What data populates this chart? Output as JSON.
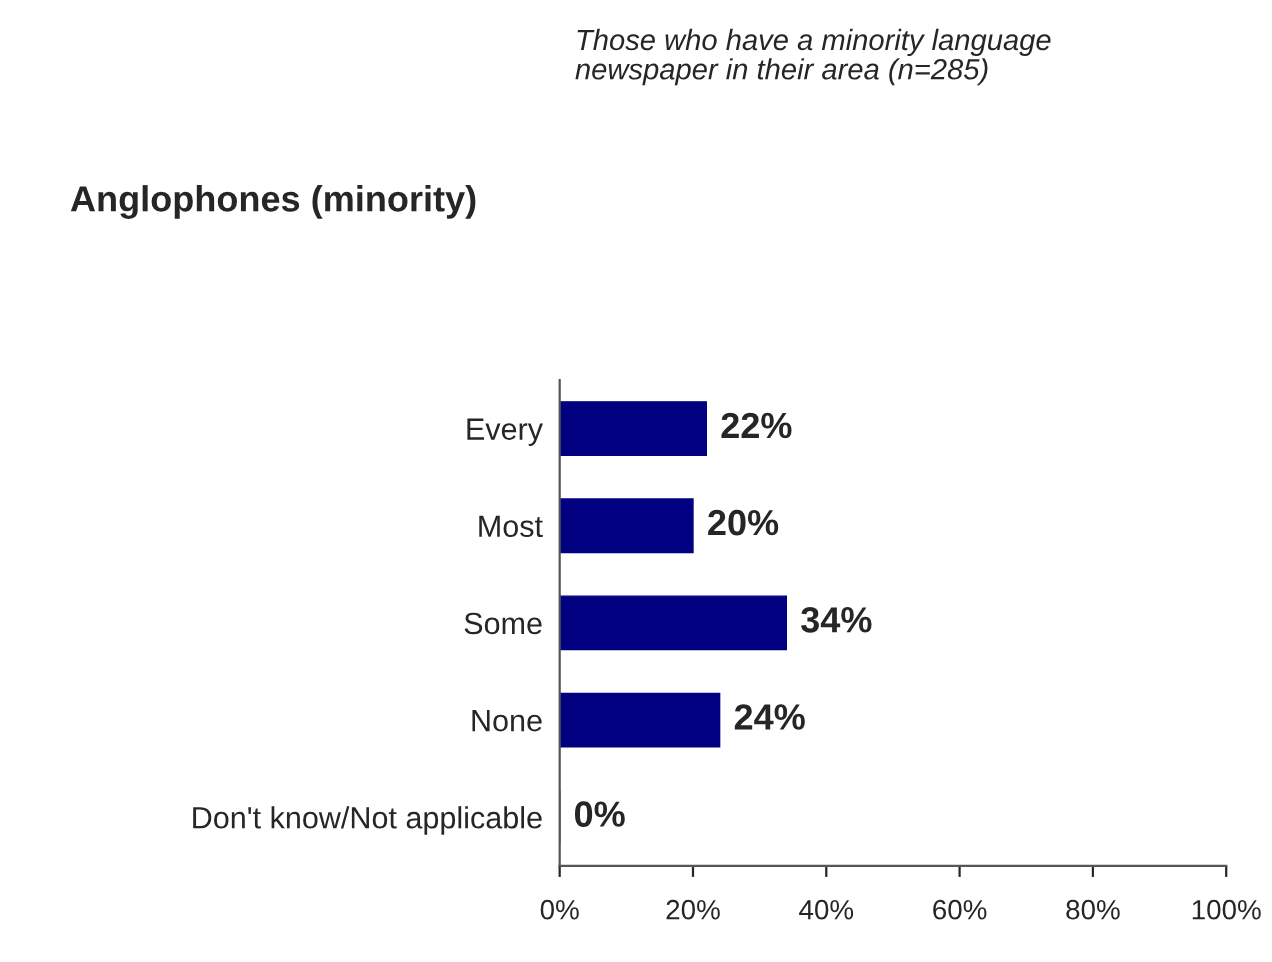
{
  "chart_data": {
    "type": "bar",
    "orientation": "horizontal",
    "title": "Anglophones (minority)",
    "subtitle": "Those who have a minority language\nnewspaper in their area (n=285)",
    "categories": [
      "Every",
      "Most",
      "Some",
      "None",
      "Don't know/Not applicable"
    ],
    "values": [
      22,
      20,
      34,
      24,
      0
    ],
    "color": "#000080",
    "value_labels": [
      "22%",
      "20%",
      "34%",
      "24%",
      "0%"
    ],
    "xlim": [
      0,
      100
    ],
    "xticks": [
      {
        "value": 0,
        "label": "0%"
      },
      {
        "value": 20,
        "label": "20%"
      },
      {
        "value": 40,
        "label": "40%"
      },
      {
        "value": 60,
        "label": "60%"
      },
      {
        "value": 80,
        "label": "80%"
      },
      {
        "value": 100,
        "label": "100%"
      }
    ],
    "grid": false,
    "legend": false
  }
}
